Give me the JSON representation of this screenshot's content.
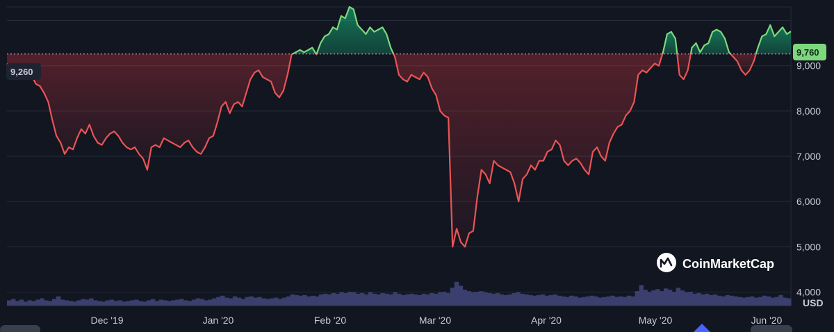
{
  "chart_data": {
    "type": "area",
    "baseline": 9260,
    "baseline_label": "9,260",
    "last_label": "9,760",
    "y_ticks": [
      4000,
      5000,
      6000,
      7000,
      8000,
      9000
    ],
    "y_tick_labels": [
      "4,000",
      "5,000",
      "6,000",
      "7,000",
      "8,000",
      "9,000"
    ],
    "ylim": [
      3700,
      10300
    ],
    "x_ticks": [
      "Dec '19",
      "Jan '20",
      "Feb '20",
      "Mar '20",
      "Apr '20",
      "May '20",
      "Jun '20"
    ],
    "volume_unit": "USD",
    "colors": {
      "above": "#16c784",
      "below": "#ea3943",
      "volume": "#3a3f6e",
      "grid": "#262c3b"
    },
    "price": [
      9050,
      8900,
      8850,
      9000,
      8900,
      8800,
      8780,
      8600,
      8550,
      8400,
      8200,
      7800,
      7450,
      7300,
      7050,
      7200,
      7150,
      7400,
      7600,
      7500,
      7700,
      7450,
      7300,
      7250,
      7400,
      7500,
      7550,
      7450,
      7300,
      7200,
      7150,
      7200,
      7050,
      6950,
      6700,
      7200,
      7250,
      7200,
      7400,
      7350,
      7300,
      7250,
      7200,
      7300,
      7350,
      7200,
      7100,
      7050,
      7200,
      7400,
      7450,
      7750,
      8100,
      8200,
      7950,
      8150,
      8200,
      8100,
      8400,
      8700,
      8850,
      8900,
      8750,
      8700,
      8650,
      8400,
      8300,
      8450,
      8800,
      9250,
      9300,
      9350,
      9300,
      9350,
      9400,
      9250,
      9500,
      9650,
      9700,
      9850,
      9800,
      10100,
      10050,
      10300,
      10250,
      9900,
      9800,
      9700,
      9850,
      9750,
      9800,
      9850,
      9700,
      9400,
      9200,
      8800,
      8700,
      8650,
      8800,
      8750,
      8700,
      8850,
      8750,
      8500,
      8350,
      8000,
      7900,
      7850,
      5000,
      5400,
      5100,
      5000,
      5300,
      5350,
      6100,
      6700,
      6600,
      6400,
      6900,
      6800,
      6750,
      6700,
      6650,
      6400,
      6000,
      6500,
      6600,
      6800,
      6700,
      6900,
      6900,
      7100,
      7150,
      7350,
      7250,
      6900,
      6800,
      6900,
      6950,
      6850,
      6700,
      6600,
      7100,
      7200,
      7000,
      6900,
      7300,
      7500,
      7650,
      7700,
      7900,
      8000,
      8200,
      8800,
      8900,
      8850,
      8950,
      9050,
      9000,
      9300,
      9700,
      9750,
      9600,
      8800,
      8700,
      8900,
      9400,
      9500,
      9300,
      9450,
      9500,
      9750,
      9800,
      9750,
      9600,
      9300,
      9200,
      9100,
      8900,
      8800,
      8900,
      9100,
      9400,
      9650,
      9700,
      9900,
      9650,
      9750,
      9850,
      9700,
      9760
    ],
    "volume": [
      3.6,
      3.8,
      3.5,
      3.7,
      3.4,
      3.6,
      3.5,
      3.7,
      3.9,
      3.6,
      3.5,
      3.8,
      4.2,
      3.7,
      3.6,
      3.5,
      3.4,
      3.6,
      3.8,
      3.7,
      3.9,
      3.6,
      3.5,
      3.4,
      3.6,
      3.7,
      3.5,
      3.6,
      3.4,
      3.5,
      3.6,
      3.7,
      3.5,
      3.4,
      3.6,
      3.8,
      3.5,
      3.7,
      3.6,
      3.5,
      3.6,
      3.7,
      3.8,
      3.6,
      3.5,
      3.7,
      3.9,
      3.8,
      3.6,
      3.7,
      3.9,
      4.1,
      4.3,
      4.0,
      3.9,
      4.2,
      4.0,
      3.8,
      4.1,
      4.2,
      4.0,
      4.1,
      3.9,
      3.8,
      3.9,
      4.0,
      3.8,
      4.0,
      4.2,
      4.5,
      4.4,
      4.3,
      4.4,
      4.2,
      4.3,
      4.2,
      4.5,
      4.6,
      4.5,
      4.7,
      4.6,
      4.8,
      4.7,
      4.9,
      4.8,
      4.6,
      4.7,
      4.5,
      4.8,
      4.6,
      4.5,
      4.7,
      4.6,
      4.5,
      4.8,
      4.6,
      4.4,
      4.5,
      4.6,
      4.5,
      4.4,
      4.6,
      4.5,
      4.7,
      4.6,
      4.8,
      4.9,
      4.7,
      5.5,
      6.4,
      5.8,
      5.2,
      5.0,
      4.8,
      4.9,
      5.0,
      4.8,
      4.7,
      4.6,
      4.7,
      4.5,
      4.4,
      4.5,
      4.7,
      4.8,
      4.6,
      4.5,
      4.4,
      4.3,
      4.4,
      4.5,
      4.3,
      4.4,
      4.5,
      4.3,
      4.2,
      4.1,
      4.3,
      4.2,
      4.0,
      4.1,
      4.2,
      4.3,
      4.2,
      4.0,
      4.1,
      4.2,
      4.3,
      4.1,
      4.2,
      4.1,
      4.3,
      4.2,
      5.0,
      5.9,
      5.2,
      4.9,
      5.1,
      5.3,
      5.0,
      5.4,
      5.2,
      4.9,
      5.5,
      5.1,
      4.8,
      4.9,
      4.6,
      4.7,
      4.5,
      4.6,
      4.4,
      4.5,
      4.3,
      4.2,
      4.4,
      4.3,
      4.2,
      4.1,
      4.0,
      4.1,
      4.2,
      4.0,
      4.1,
      4.3,
      4.2,
      4.0,
      4.1,
      4.4,
      4.0,
      3.9
    ]
  },
  "watermark": {
    "brand": "CoinMarketCap",
    "icon": "coinmarketcap-logo-icon"
  }
}
